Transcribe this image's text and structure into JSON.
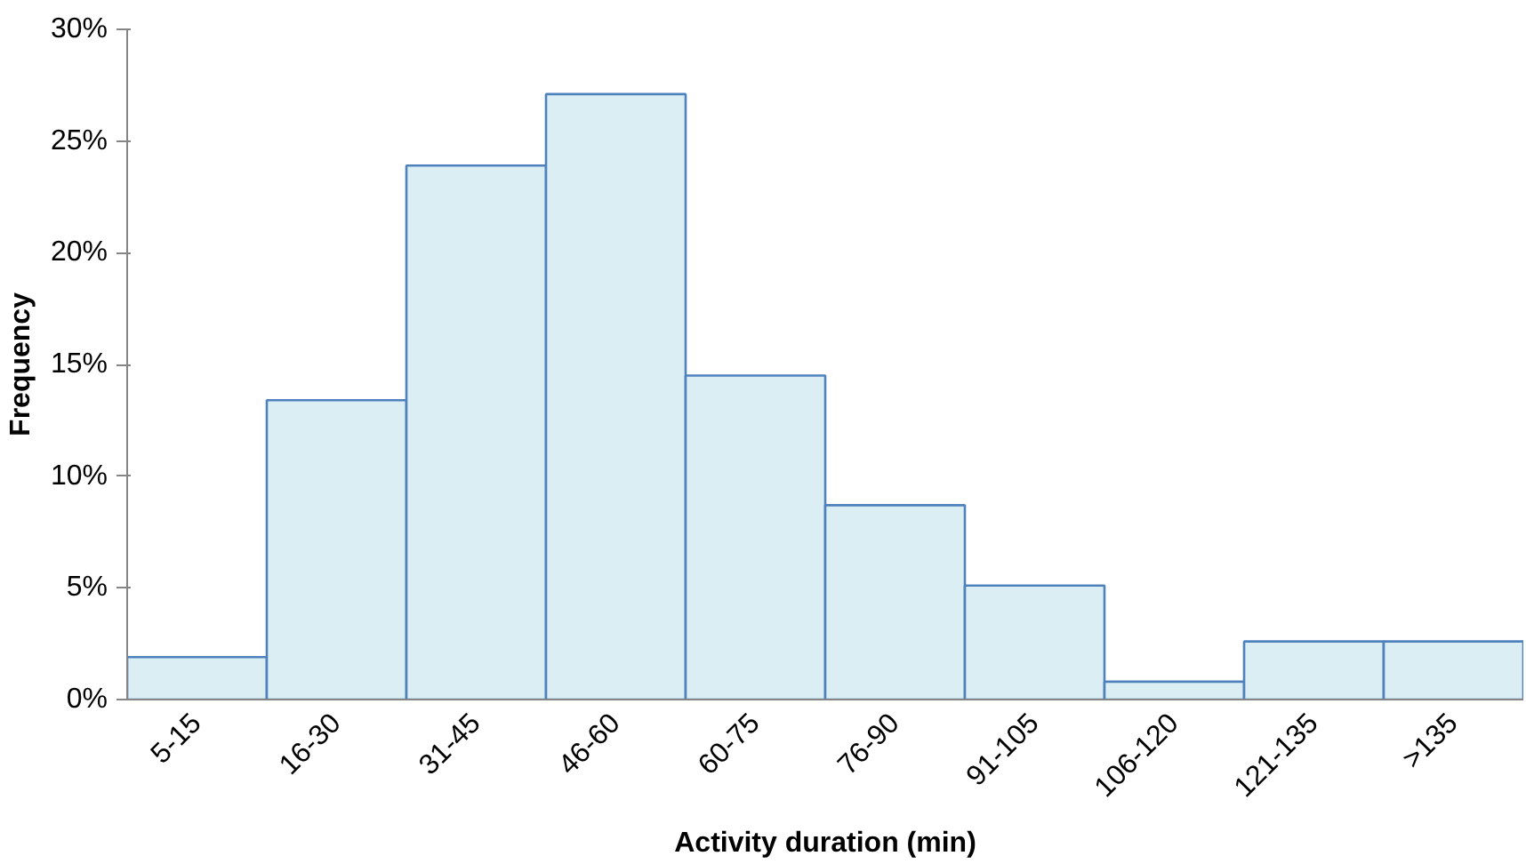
{
  "chart_data": {
    "type": "bar",
    "xlabel": "Activity duration (min)",
    "ylabel": "Frequency",
    "categories": [
      "5-15",
      "16-30",
      "31-45",
      "46-60",
      "60-75",
      "76-90",
      "91-105",
      "106-120",
      "121-135",
      ">135"
    ],
    "values": [
      1.9,
      13.4,
      23.9,
      27.1,
      14.5,
      8.7,
      5.1,
      0.8,
      2.6,
      2.6
    ],
    "color": "#dbeef4",
    "ylim": [
      0,
      30
    ],
    "yticks": [
      {
        "value": 0,
        "label": "0%"
      },
      {
        "value": 5,
        "label": "5%"
      },
      {
        "value": 10,
        "label": "10%"
      },
      {
        "value": 15,
        "label": "15%"
      },
      {
        "value": 20,
        "label": "20%"
      },
      {
        "value": 25,
        "label": "25%"
      },
      {
        "value": 30,
        "label": "30%"
      }
    ],
    "grid": false
  }
}
